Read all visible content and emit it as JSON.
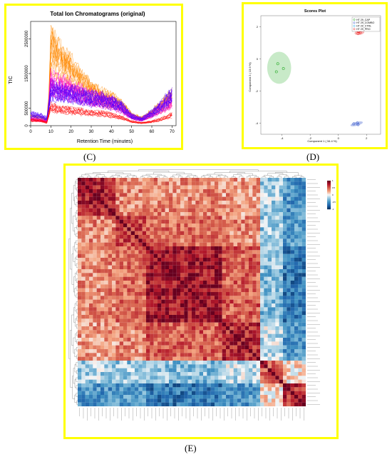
{
  "panel_labels": {
    "c": "(C)",
    "d": "(D)",
    "e": "(E)"
  },
  "chart_data": [
    {
      "id": "C",
      "type": "line",
      "title": "Total Ion Chromatograms (original)",
      "xlabel": "Retention Time (minutes)",
      "ylabel": "TIC",
      "xlim": [
        0,
        72
      ],
      "ylim": [
        0,
        3000000
      ],
      "x_ticks": [
        "0",
        "10",
        "20",
        "30",
        "40",
        "50",
        "60",
        "70"
      ],
      "x_tick_values": [
        0,
        10,
        20,
        30,
        40,
        50,
        60,
        70
      ],
      "y_ticks": [
        "0",
        "500000",
        "1500000",
        "2500000"
      ],
      "y_tick_values": [
        0,
        500000,
        1500000,
        2500000
      ],
      "envelope_x": [
        0,
        5,
        8,
        9,
        10,
        12,
        15,
        20,
        25,
        30,
        35,
        40,
        45,
        50,
        55,
        60,
        65,
        70
      ],
      "series": [
        {
          "color": "#ff8800",
          "values": [
            300000,
            250000,
            200000,
            900000,
            2700000,
            2500000,
            2200000,
            1900000,
            1500000,
            1200000,
            1000000,
            900000,
            700000,
            350000,
            250000,
            450000,
            700000,
            1000000
          ]
        },
        {
          "color": "#ff00c8",
          "values": [
            250000,
            200000,
            180000,
            800000,
            1600000,
            1500000,
            1400000,
            1300000,
            1150000,
            1000000,
            950000,
            850000,
            650000,
            330000,
            230000,
            420000,
            650000,
            950000
          ]
        },
        {
          "color": "#5500ff",
          "values": [
            400000,
            350000,
            250000,
            700000,
            1300000,
            1250000,
            1200000,
            1150000,
            1050000,
            1000000,
            950000,
            850000,
            700000,
            340000,
            240000,
            450000,
            750000,
            1100000
          ]
        },
        {
          "color": "#ff0000",
          "values": [
            200000,
            180000,
            120000,
            450000,
            700000,
            650000,
            600000,
            560000,
            520000,
            480000,
            450000,
            400000,
            300000,
            150000,
            100000,
            150000,
            250000,
            400000
          ]
        }
      ]
    },
    {
      "id": "D",
      "type": "scatter",
      "title": "Scores Plot",
      "xlabel": "Component 1 ( 34.4 %)",
      "ylabel": "Component 2 ( 13.9 %)",
      "xlim": [
        -5.5,
        3
      ],
      "ylim": [
        -4.7,
        2.7
      ],
      "x_ticks": [
        "-4",
        "-2",
        "0",
        "2"
      ],
      "x_tick_values": [
        -4,
        -2,
        0,
        2
      ],
      "y_ticks": [
        "2",
        "0",
        "-2",
        "-4"
      ],
      "y_tick_values": [
        2,
        0,
        -2,
        -4
      ],
      "legend_position": "top-right",
      "series": [
        {
          "name": "HT 29_CAP",
          "color": "#22aa22",
          "points": [
            [
              -4.3,
              -0.3
            ],
            [
              -3.9,
              -0.6
            ],
            [
              -4.4,
              -0.8
            ]
          ]
        },
        {
          "name": "HT 29_COMBO",
          "color": "#3355cc",
          "points": [
            [
              1.1,
              -4.05
            ],
            [
              1.35,
              -4.0
            ],
            [
              1.4,
              -4.1
            ]
          ]
        },
        {
          "name": "HT 29_CTRL",
          "color": "#22aaee",
          "points": [
            [
              1.3,
              1.95
            ],
            [
              1.5,
              2.0
            ],
            [
              1.7,
              1.9
            ]
          ]
        },
        {
          "name": "HT 29_PRO",
          "color": "#ee2222",
          "points": [
            [
              1.4,
              1.6
            ],
            [
              1.45,
              1.7
            ],
            [
              1.55,
              1.65
            ]
          ]
        }
      ]
    },
    {
      "id": "E",
      "type": "heatmap",
      "size": 60,
      "color_scale": [
        "#053061",
        "#2166ac",
        "#4393c3",
        "#92c5de",
        "#f7f7f7",
        "#f4a582",
        "#d6604d",
        "#b2182b",
        "#67001f"
      ],
      "colorbar_ticks": [
        "1",
        "0.5",
        "0",
        "-0.5",
        "-1"
      ],
      "colorbar_values": [
        1,
        0.5,
        0,
        -0.5,
        -1
      ]
    }
  ]
}
